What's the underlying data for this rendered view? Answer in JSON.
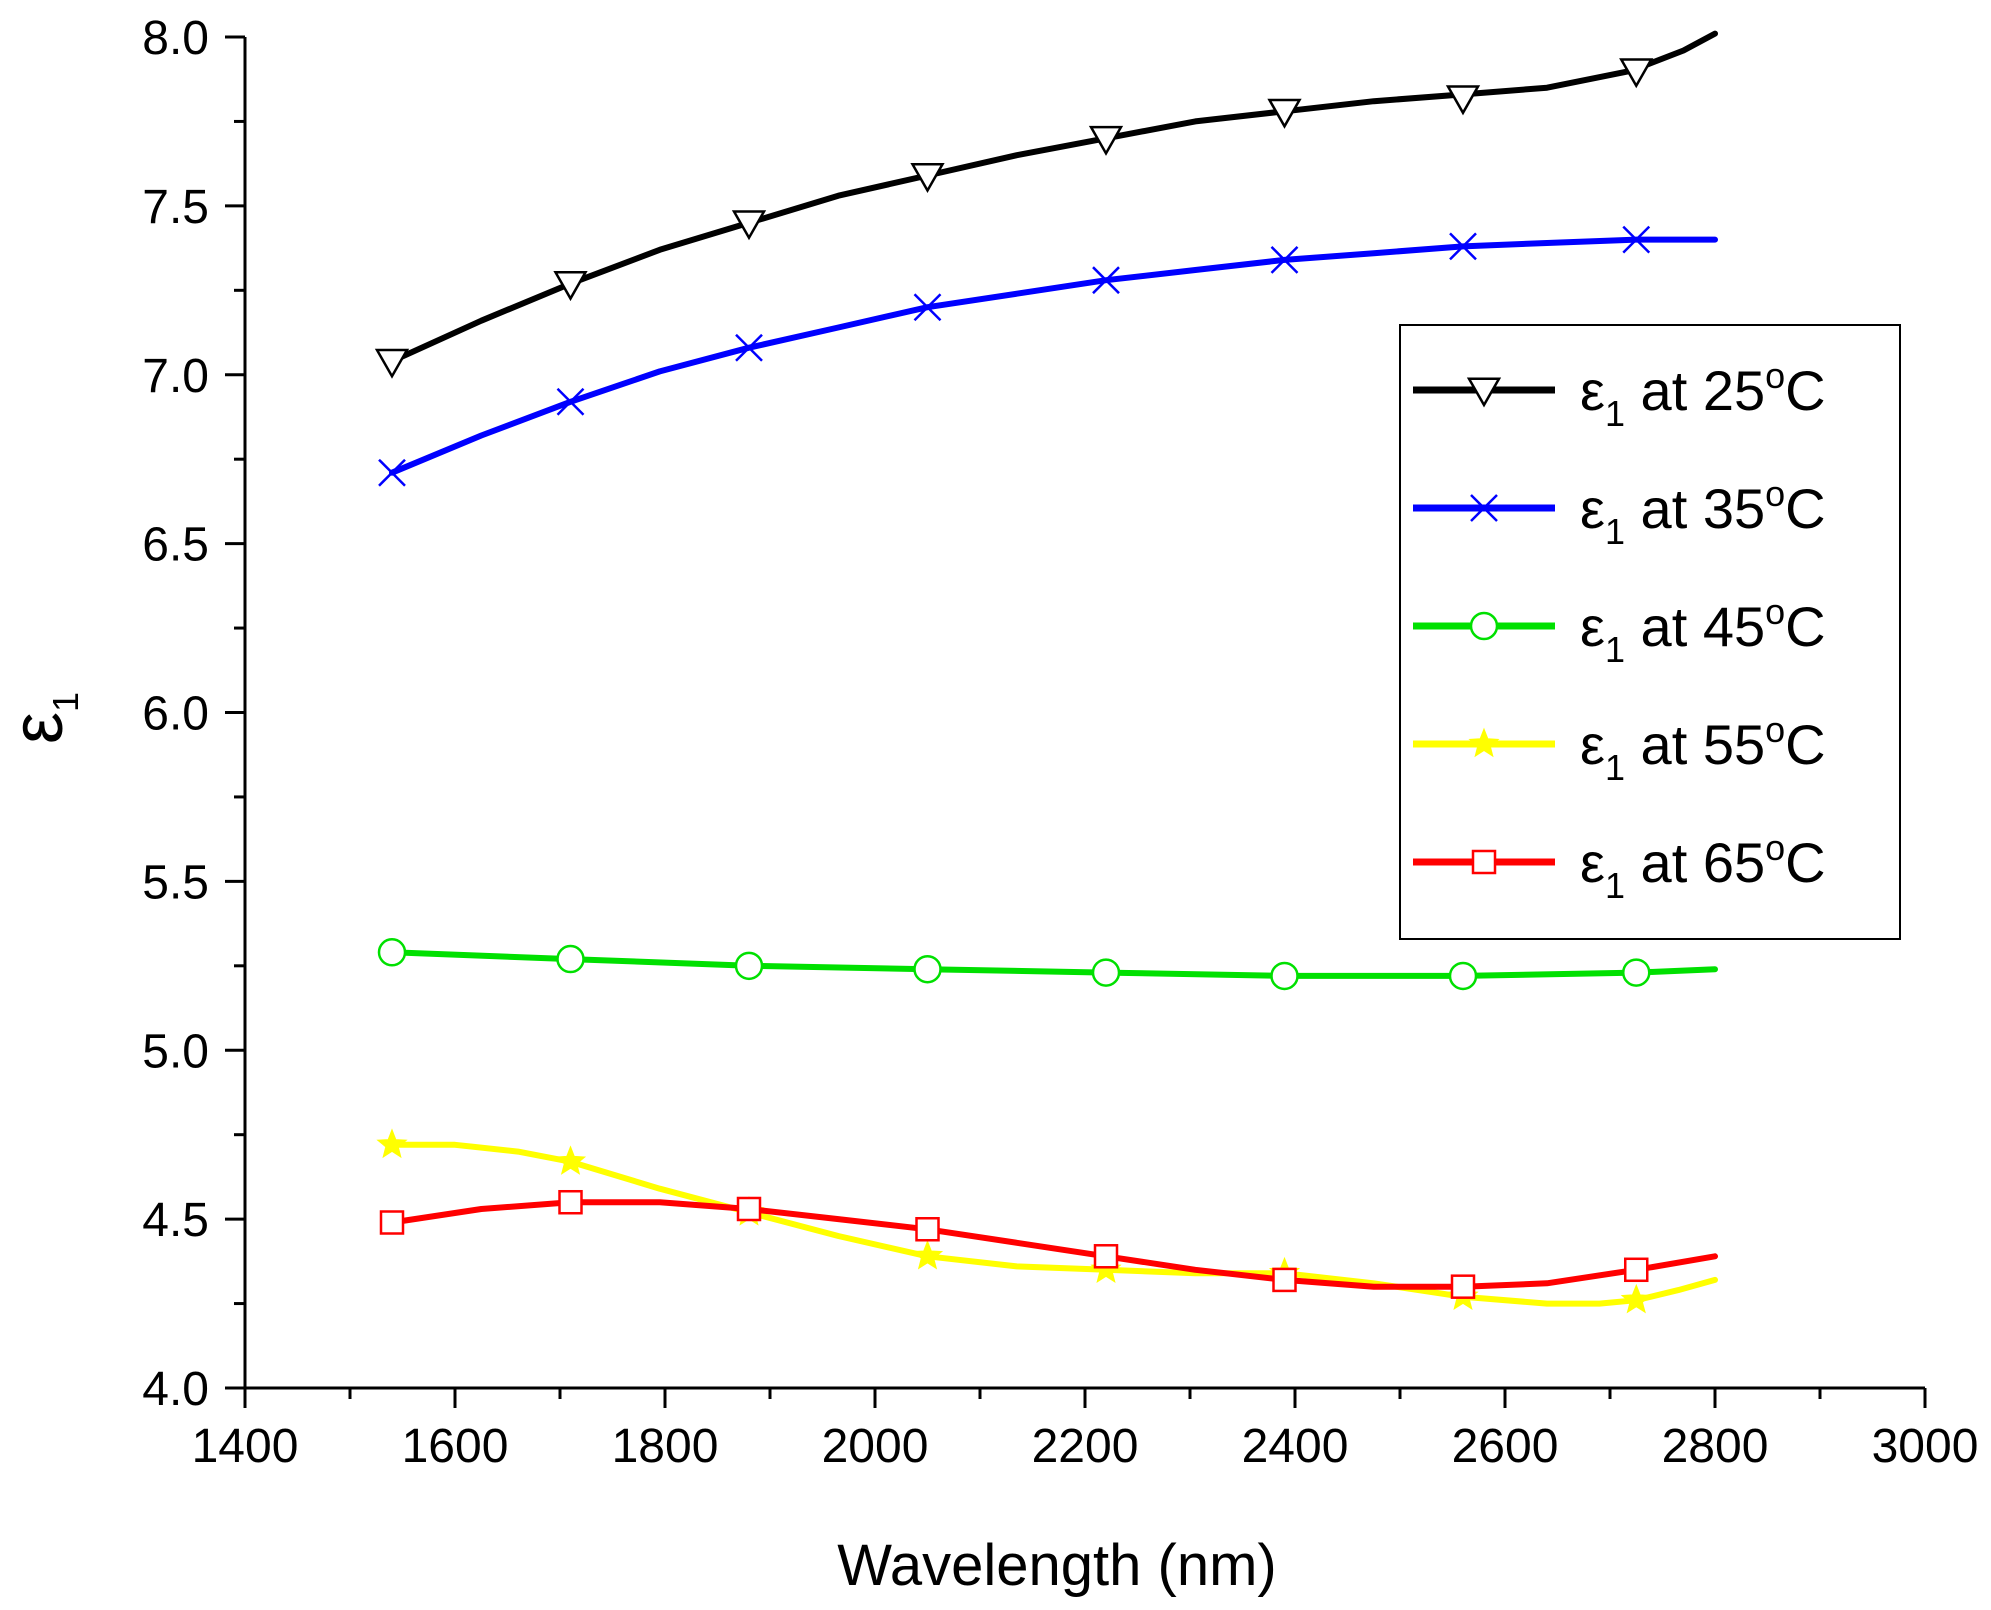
{
  "chart_data": {
    "type": "line",
    "title": "",
    "xlabel": "Wavelength (nm)",
    "ylabel": "ε",
    "ylabel_sub": "1",
    "xlim": [
      1400,
      3000
    ],
    "ylim": [
      4.0,
      8.0
    ],
    "x_major_ticks": [
      1400,
      1600,
      1800,
      2000,
      2200,
      2400,
      2600,
      2800,
      3000
    ],
    "x_tick_labels": [
      "1400",
      "1600",
      "1800",
      "2000",
      "2200",
      "2400",
      "2600",
      "2800",
      "3000"
    ],
    "y_major_ticks": [
      4.0,
      4.5,
      5.0,
      5.5,
      6.0,
      6.5,
      7.0,
      7.5,
      8.0
    ],
    "y_tick_labels": [
      "4.0",
      "4.5",
      "5.0",
      "5.5",
      "6.0",
      "6.5",
      "7.0",
      "7.5",
      "8.0"
    ],
    "grid": false,
    "legend_position": "right-upper",
    "series": [
      {
        "name": "ε1 at 25°C",
        "label_symbol": "ε",
        "label_sub": "1",
        "label_mid": " at 25",
        "label_sup": "o",
        "label_end": "C",
        "color": "#000000",
        "marker": "triangle-down",
        "curve_x": [
          1540,
          1625,
          1710,
          1795,
          1880,
          1965,
          2050,
          2135,
          2220,
          2305,
          2390,
          2475,
          2560,
          2640,
          2720,
          2770,
          2800
        ],
        "curve_y": [
          7.04,
          7.16,
          7.27,
          7.37,
          7.45,
          7.53,
          7.59,
          7.65,
          7.7,
          7.75,
          7.78,
          7.81,
          7.83,
          7.85,
          7.9,
          7.96,
          8.01
        ],
        "marker_x": [
          1540,
          1710,
          1880,
          2050,
          2220,
          2390,
          2560,
          2725
        ],
        "marker_y": [
          7.04,
          7.27,
          7.45,
          7.59,
          7.7,
          7.78,
          7.82,
          7.9
        ]
      },
      {
        "name": "ε1 at 35°C",
        "label_symbol": "ε",
        "label_sub": "1",
        "label_mid": " at 35",
        "label_sup": "o",
        "label_end": "C",
        "color": "#0000ff",
        "marker": "x",
        "curve_x": [
          1540,
          1625,
          1710,
          1795,
          1880,
          1965,
          2050,
          2135,
          2220,
          2305,
          2390,
          2475,
          2560,
          2640,
          2725,
          2800
        ],
        "curve_y": [
          6.71,
          6.82,
          6.92,
          7.01,
          7.08,
          7.14,
          7.2,
          7.24,
          7.28,
          7.31,
          7.34,
          7.36,
          7.38,
          7.39,
          7.4,
          7.4
        ],
        "marker_x": [
          1540,
          1710,
          1880,
          2050,
          2220,
          2390,
          2560,
          2725
        ],
        "marker_y": [
          6.71,
          6.92,
          7.08,
          7.2,
          7.28,
          7.34,
          7.38,
          7.4
        ]
      },
      {
        "name": "ε1 at 45°C",
        "label_symbol": "ε",
        "label_sub": "1",
        "label_mid": " at 45",
        "label_sup": "o",
        "label_end": "C",
        "color": "#00e000",
        "marker": "circle",
        "curve_x": [
          1540,
          1710,
          1880,
          2050,
          2220,
          2390,
          2560,
          2725,
          2800
        ],
        "curve_y": [
          5.29,
          5.27,
          5.25,
          5.24,
          5.23,
          5.22,
          5.22,
          5.23,
          5.24
        ],
        "marker_x": [
          1540,
          1710,
          1880,
          2050,
          2220,
          2390,
          2560,
          2725
        ],
        "marker_y": [
          5.29,
          5.27,
          5.25,
          5.24,
          5.23,
          5.22,
          5.22,
          5.23
        ]
      },
      {
        "name": "ε1 at 55°C",
        "label_symbol": "ε",
        "label_sub": "1",
        "label_mid": " at 55",
        "label_sup": "o",
        "label_end": "C",
        "color": "#ffff00",
        "marker": "star",
        "curve_x": [
          1540,
          1600,
          1660,
          1710,
          1795,
          1880,
          1965,
          2050,
          2135,
          2220,
          2305,
          2390,
          2475,
          2560,
          2640,
          2690,
          2725,
          2765,
          2800
        ],
        "curve_y": [
          4.72,
          4.72,
          4.7,
          4.67,
          4.59,
          4.52,
          4.45,
          4.39,
          4.36,
          4.35,
          4.34,
          4.34,
          4.31,
          4.27,
          4.25,
          4.25,
          4.26,
          4.29,
          4.32
        ],
        "marker_x": [
          1540,
          1710,
          1880,
          2050,
          2220,
          2390,
          2560,
          2725
        ],
        "marker_y": [
          4.72,
          4.67,
          4.52,
          4.39,
          4.35,
          4.34,
          4.27,
          4.26
        ]
      },
      {
        "name": "ε1 at 65°C",
        "label_symbol": "ε",
        "label_sub": "1",
        "label_mid": " at 65",
        "label_sup": "o",
        "label_end": "C",
        "color": "#ff0000",
        "marker": "square",
        "curve_x": [
          1540,
          1625,
          1710,
          1795,
          1880,
          1965,
          2050,
          2135,
          2220,
          2305,
          2390,
          2475,
          2560,
          2640,
          2725,
          2800
        ],
        "curve_y": [
          4.49,
          4.53,
          4.55,
          4.55,
          4.53,
          4.5,
          4.47,
          4.43,
          4.39,
          4.35,
          4.32,
          4.3,
          4.3,
          4.31,
          4.35,
          4.39
        ],
        "marker_x": [
          1540,
          1710,
          1880,
          2050,
          2220,
          2390,
          2560,
          2725
        ],
        "marker_y": [
          4.49,
          4.55,
          4.53,
          4.47,
          4.39,
          4.32,
          4.3,
          4.35
        ]
      }
    ]
  }
}
